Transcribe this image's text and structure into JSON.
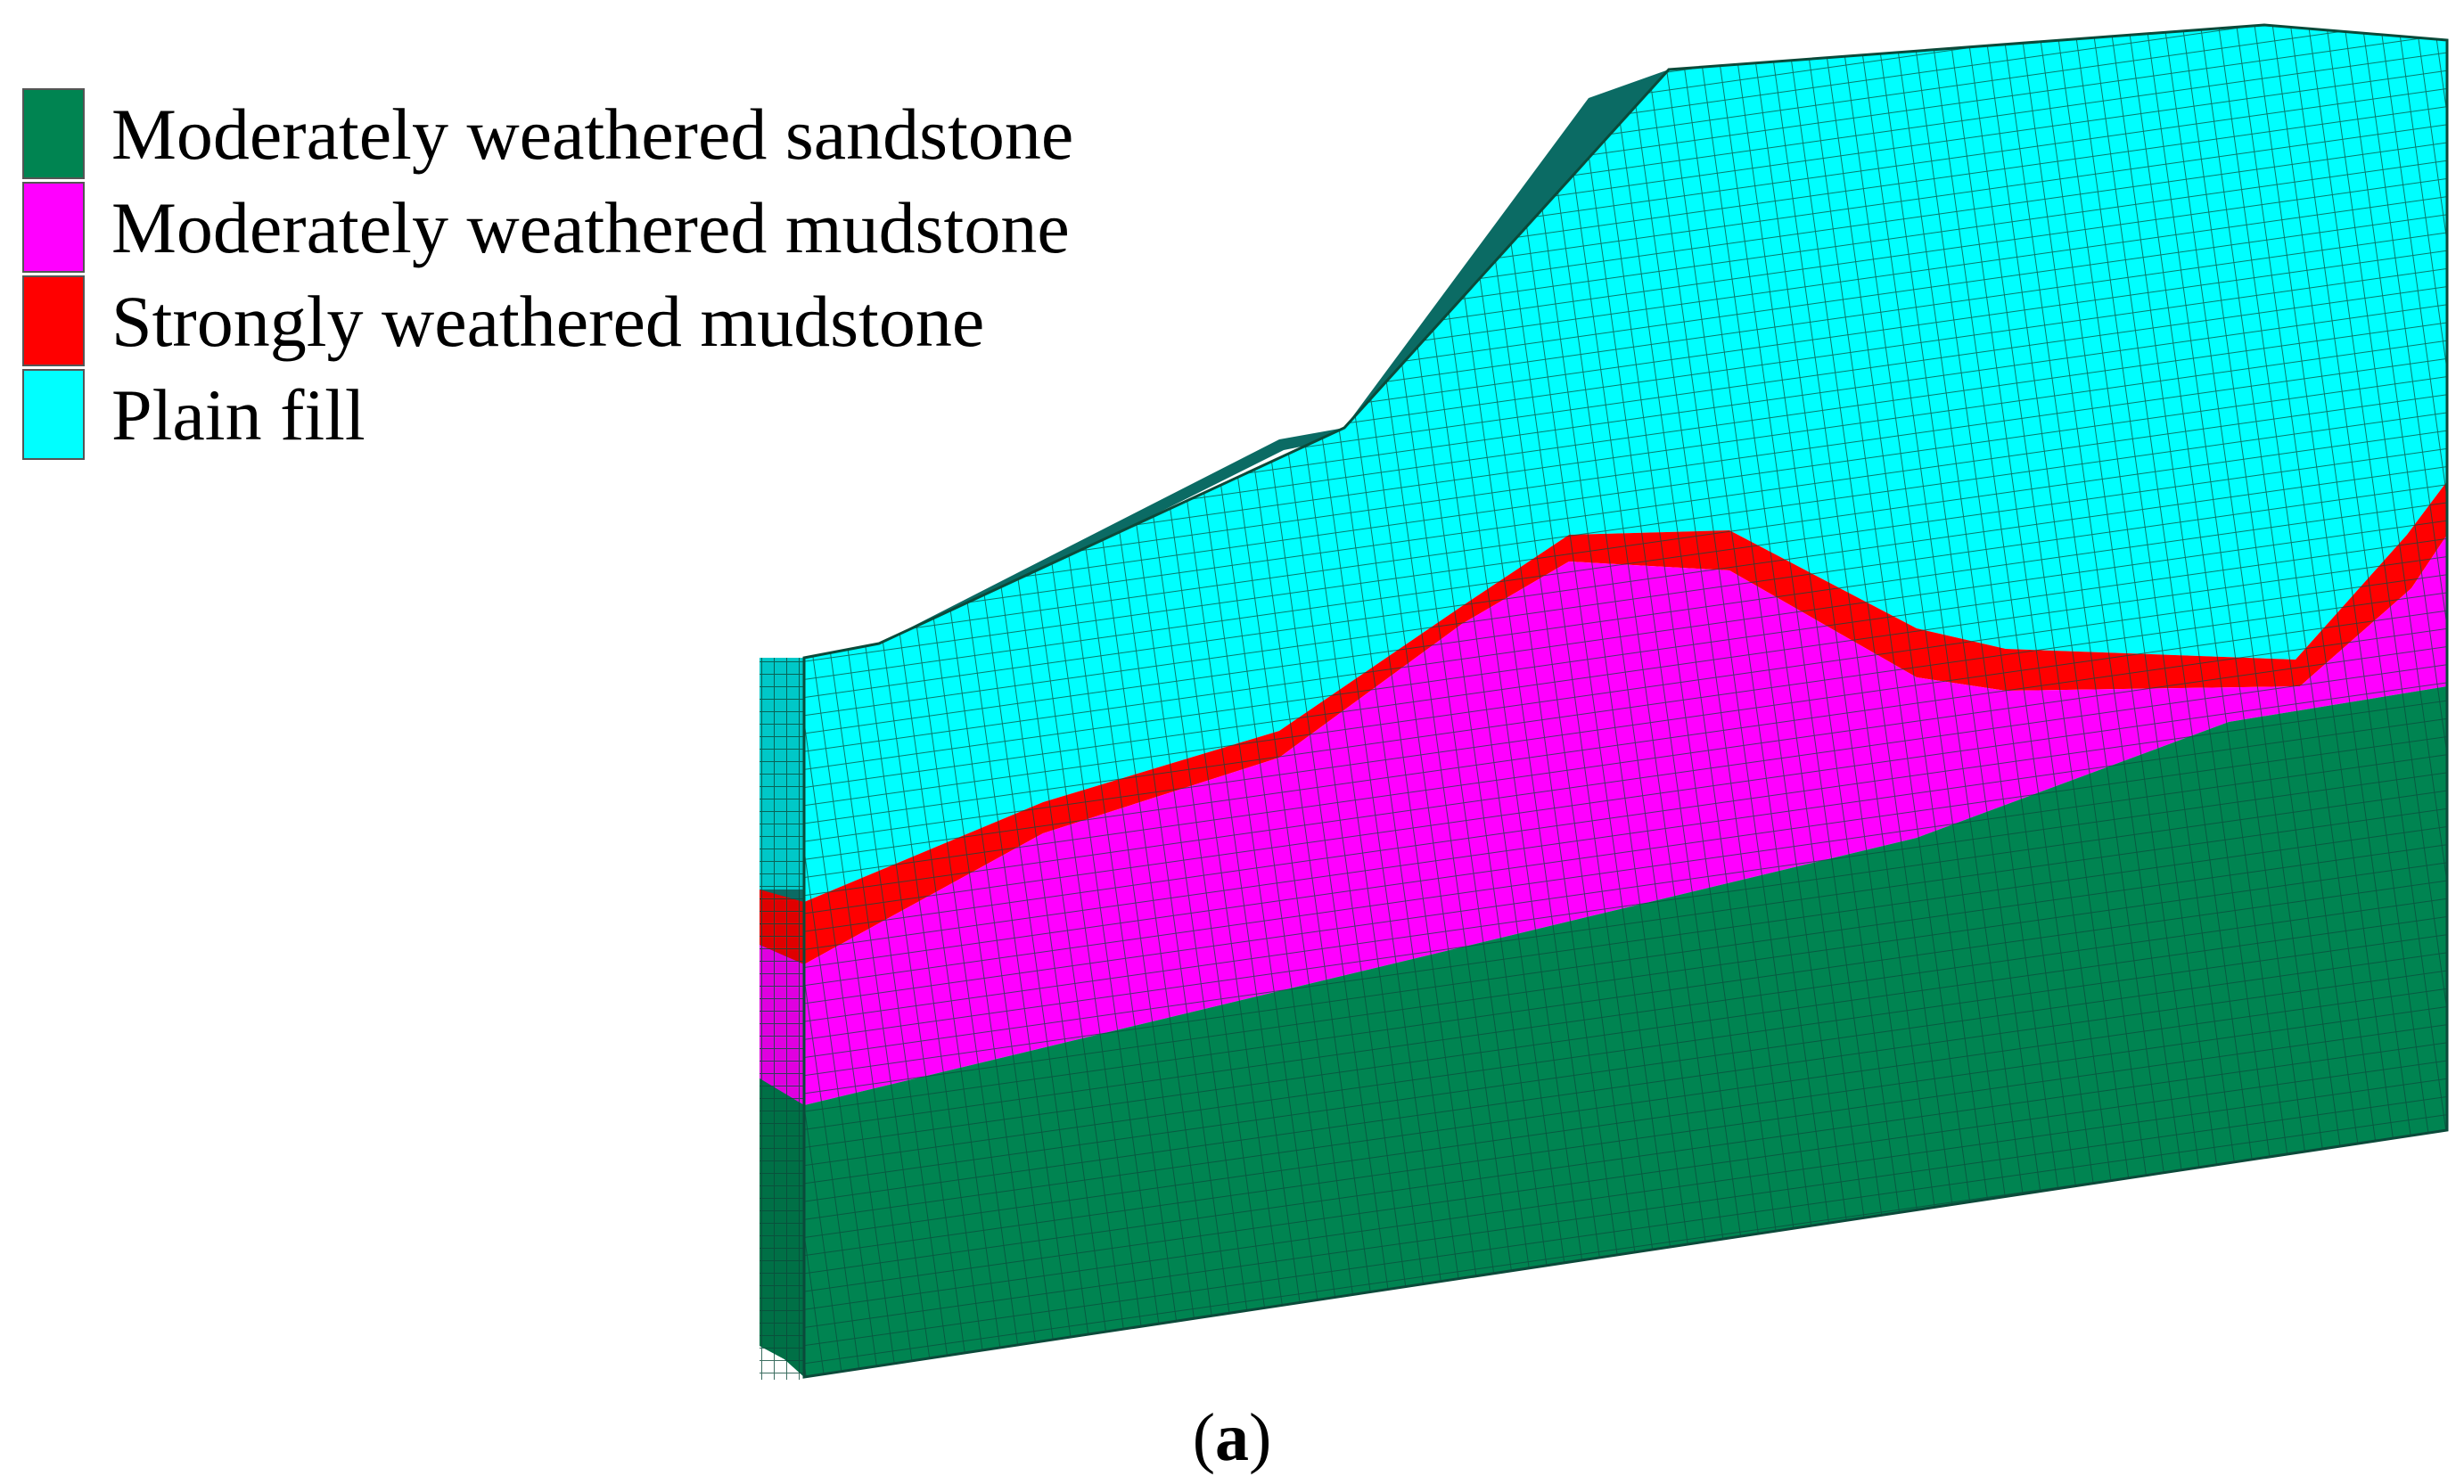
{
  "legend": {
    "items": [
      {
        "label": "Moderately weathered sandstone",
        "color": "#008451"
      },
      {
        "label": "Moderately weathered mudstone",
        "color": "#ff00ff"
      },
      {
        "label": "Strongly weathered mudstone",
        "color": "#ff0000"
      },
      {
        "label": "Plain fill",
        "color": "#00ffff"
      }
    ]
  },
  "caption": {
    "open": "(",
    "letter": "a",
    "close": ")"
  },
  "mesh": {
    "line_color": "#0b4a3a",
    "side_shade_color": "#0b6b64"
  }
}
